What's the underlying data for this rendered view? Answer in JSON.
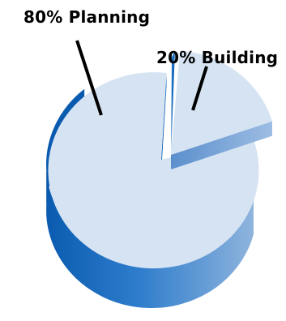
{
  "chart_data": {
    "type": "pie",
    "style": "3d-exploded",
    "slices": [
      {
        "name": "Planning",
        "value": 80,
        "label": "80% Planning"
      },
      {
        "name": "Building",
        "value": 20,
        "label": "20% Building"
      }
    ],
    "colors": {
      "top": "#d5e3f2",
      "side_dark": "#0a5bb0",
      "side_light": "#7ea6d6",
      "cut_face": "#1c6fc0",
      "leader": "#000000"
    }
  }
}
